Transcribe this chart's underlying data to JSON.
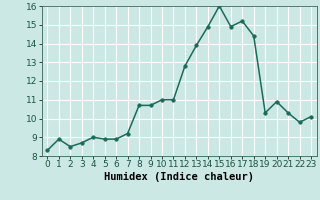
{
  "x": [
    0,
    1,
    2,
    3,
    4,
    5,
    6,
    7,
    8,
    9,
    10,
    11,
    12,
    13,
    14,
    15,
    16,
    17,
    18,
    19,
    20,
    21,
    22,
    23
  ],
  "y": [
    8.3,
    8.9,
    8.5,
    8.7,
    9.0,
    8.9,
    8.9,
    9.2,
    10.7,
    10.7,
    11.0,
    11.0,
    12.8,
    13.9,
    14.9,
    16.0,
    14.9,
    15.2,
    14.4,
    10.3,
    10.9,
    10.3,
    9.8,
    10.1
  ],
  "line_color": "#1a6b5a",
  "marker_color": "#1a6b5a",
  "bg_color": "#cce8e4",
  "grid_color": "#ffffff",
  "xlabel": "Humidex (Indice chaleur)",
  "ylim": [
    8,
    16
  ],
  "xlim_min": -0.5,
  "xlim_max": 23.5,
  "yticks": [
    8,
    9,
    10,
    11,
    12,
    13,
    14,
    15,
    16
  ],
  "xticks": [
    0,
    1,
    2,
    3,
    4,
    5,
    6,
    7,
    8,
    9,
    10,
    11,
    12,
    13,
    14,
    15,
    16,
    17,
    18,
    19,
    20,
    21,
    22,
    23
  ],
  "tick_label_fontsize": 6.5,
  "xlabel_fontsize": 7.5,
  "linewidth": 1.1,
  "markersize": 2.5
}
